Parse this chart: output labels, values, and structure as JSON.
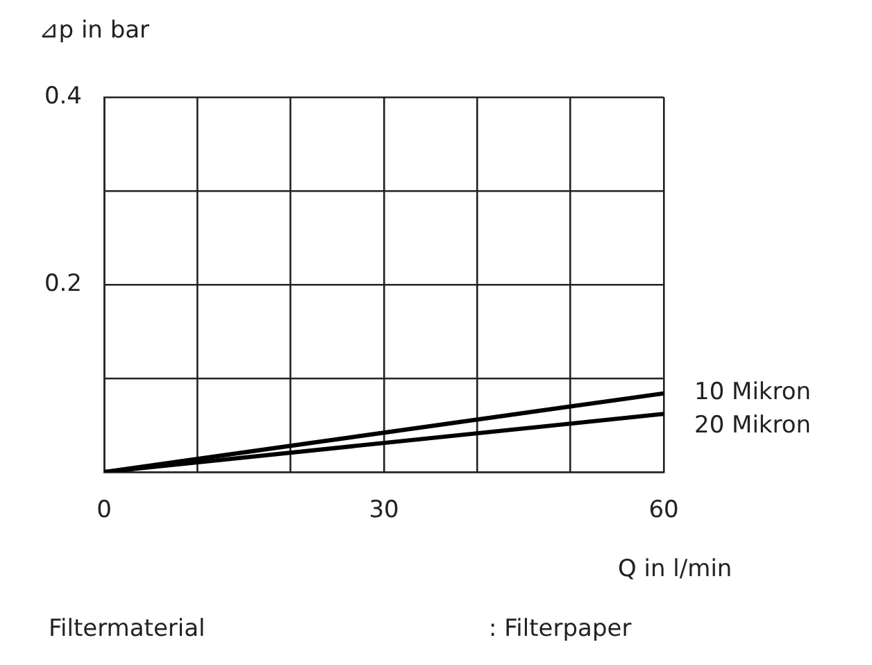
{
  "chart_data": {
    "type": "line",
    "ylabel": "⊿p in bar",
    "xlabel": "Q in l/min",
    "x": [
      0,
      60
    ],
    "series": [
      {
        "name": "10 Mikron",
        "color": "#000000",
        "values": [
          0,
          0.084
        ]
      },
      {
        "name": "20 Mikron",
        "color": "#000000",
        "values": [
          0,
          0.062
        ]
      }
    ],
    "xlim": [
      0,
      60
    ],
    "xticks": [
      0,
      {
        "value": 10,
        "label": null
      },
      {
        "value": 20,
        "label": null
      },
      30,
      {
        "value": 40,
        "label": null
      },
      {
        "value": 50,
        "label": null
      },
      60
    ],
    "ylim": [
      0,
      0.4
    ],
    "yticks": [
      {
        "value": 0,
        "label": null
      },
      {
        "value": 0.1,
        "label": null
      },
      0.2,
      {
        "value": 0.3,
        "label": null
      },
      0.4
    ],
    "grid": true,
    "legend": false,
    "marker": "none",
    "line_style": "solid",
    "annotations": [
      "Filtermaterial",
      ": Filterpaper"
    ]
  }
}
